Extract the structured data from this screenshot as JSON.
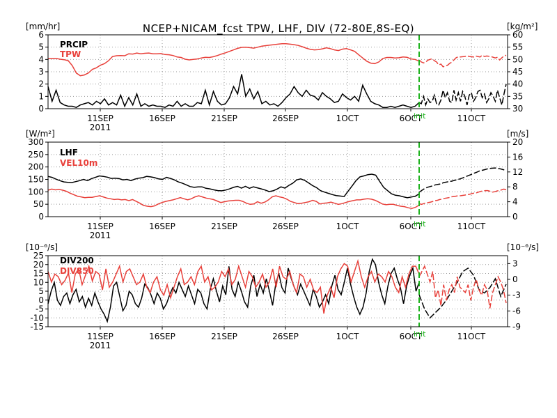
{
  "title": "NCEP+NICAM_fcst TPW, LHF, DIV (72-80E,8S-EQ)",
  "init_label": "init",
  "colors": {
    "black": "#000000",
    "red": "#e8403a",
    "init": "#1db21d"
  },
  "x_ticks": [
    {
      "label": "11SEP",
      "sub": "2011"
    },
    {
      "label": "16SEP",
      "sub": ""
    },
    {
      "label": "21SEP",
      "sub": ""
    },
    {
      "label": "26SEP",
      "sub": ""
    },
    {
      "label": "1OCT",
      "sub": ""
    },
    {
      "label": "6OCT",
      "sub": ""
    },
    {
      "label": "11OCT",
      "sub": ""
    }
  ],
  "chart_data": [
    {
      "type": "line",
      "left_unit": "[mm/hr]",
      "right_unit": "[kg/m²]",
      "left_ticks": [
        "6",
        "5",
        "4",
        "3",
        "2",
        "1",
        "0"
      ],
      "right_ticks": [
        "60",
        "55",
        "50",
        "45",
        "40",
        "35",
        "30"
      ],
      "ylim_left": [
        0,
        6
      ],
      "ylim_right": [
        30,
        60
      ],
      "series": [
        {
          "name": "PRCIP",
          "axis": "left",
          "color": "#000000",
          "obs": [
            1.8,
            0.6,
            1.5,
            0.5,
            0.3,
            0.2,
            0.2,
            0.1,
            0.3,
            0.4,
            0.5,
            0.3,
            0.6,
            0.4,
            0.8,
            0.3,
            0.5,
            0.3,
            1.1,
            0.2,
            0.9,
            0.3,
            1.2,
            0.2,
            0.4,
            0.2,
            0.3,
            0.2,
            0.2,
            0.1,
            0.3,
            0.2,
            0.6,
            0.2,
            0.4,
            0.2,
            0.2,
            0.5,
            0.4,
            1.5,
            0.3,
            1.4,
            0.6,
            0.3,
            0.4,
            0.9,
            1.8,
            1.2,
            2.8,
            1.0,
            1.6,
            0.8,
            1.4,
            0.4,
            0.6,
            0.3,
            0.4,
            0.2,
            0.5,
            0.9,
            1.2,
            1.8,
            1.3,
            1.0,
            1.5,
            1.1,
            1.0,
            0.7,
            1.3,
            1.0,
            0.8,
            0.5,
            0.6,
            1.2,
            0.9,
            0.7,
            1.0,
            0.6,
            1.9,
            1.2,
            0.6,
            0.4,
            0.3,
            0.1,
            0.1,
            0.2,
            0.1,
            0.2,
            0.3,
            0.2,
            0.1,
            0.2,
            0.5
          ],
          "fcst": [
            0.5,
            0.4,
            1.0,
            0.3,
            0.8,
            0.5,
            0.6,
            1.1,
            0.4,
            0.3,
            0.7,
            1.5,
            0.9,
            1.3,
            0.6,
            0.5,
            1.5,
            0.7,
            1.3,
            0.6,
            1.4,
            1.0,
            0.3,
            1.1,
            1.3,
            0.6,
            0.9,
            1.4,
            1.5,
            0.9,
            1.2,
            0.5,
            0.8,
            1.3,
            1.0,
            0.6,
            1.5,
            0.9,
            0.3,
            1.2,
            2.0
          ]
        },
        {
          "name": "TPW",
          "axis": "right",
          "color": "#e8403a",
          "obs": [
            50.3,
            50.4,
            50.4,
            50.1,
            49.9,
            49.5,
            47.5,
            44.5,
            43.4,
            43.7,
            44.5,
            46.0,
            46.6,
            47.7,
            48.3,
            49.5,
            51.2,
            51.5,
            51.6,
            51.5,
            52.3,
            52.2,
            52.6,
            52.3,
            52.5,
            52.6,
            52.3,
            52.3,
            52.4,
            52.0,
            51.9,
            51.6,
            51.0,
            50.8,
            50.1,
            49.8,
            50.0,
            50.2,
            50.6,
            50.9,
            50.8,
            51.1,
            51.6,
            52.2,
            52.7,
            53.3,
            53.9,
            54.5,
            54.9,
            55.0,
            54.8,
            54.6,
            55.0,
            55.4,
            55.6,
            55.8,
            56.0,
            56.2,
            56.4,
            56.4,
            56.2,
            56.0,
            55.7,
            55.2,
            54.6,
            54.1,
            53.9,
            54.0,
            54.3,
            54.7,
            54.4,
            53.9,
            53.6,
            54.2,
            54.4,
            53.9,
            53.3,
            51.9,
            50.6,
            49.3,
            48.5,
            48.3,
            49.0,
            50.4,
            50.8,
            50.8,
            50.6,
            50.7,
            51.0,
            50.9,
            50.2,
            50.0,
            49.3
          ],
          "fcst": [
            49.8,
            49.0,
            48.6,
            48.9,
            49.7,
            50.0,
            50.3,
            49.5,
            49.0,
            47.8,
            48.1,
            47.0,
            47.3,
            47.6,
            48.4,
            48.9,
            49.8,
            50.7,
            51.1,
            51.0,
            51.1,
            51.2,
            51.5,
            51.2,
            51.1,
            51.0,
            51.4,
            51.2,
            51.0,
            51.7,
            51.2,
            51.4,
            51.3,
            51.2,
            50.9,
            50.6,
            50.9,
            49.8,
            50.7,
            51.4,
            51.7
          ]
        }
      ]
    },
    {
      "type": "line",
      "left_unit": "[W/m²]",
      "right_unit": "[m/s]",
      "left_ticks": [
        "300",
        "250",
        "200",
        "150",
        "100",
        "50",
        "0"
      ],
      "right_ticks": [
        "20",
        "16",
        "12",
        "8",
        "4",
        "0"
      ],
      "ylim_left": [
        0,
        300
      ],
      "ylim_right": [
        0,
        20
      ],
      "series": [
        {
          "name": "LHF",
          "axis": "left",
          "color": "#000000",
          "obs": [
            162,
            158,
            151,
            145,
            140,
            138,
            137,
            141,
            145,
            150,
            145,
            153,
            158,
            164,
            162,
            159,
            154,
            155,
            153,
            148,
            150,
            145,
            151,
            155,
            157,
            162,
            160,
            157,
            152,
            150,
            158,
            154,
            148,
            140,
            135,
            128,
            121,
            118,
            120,
            120,
            114,
            112,
            108,
            105,
            104,
            107,
            112,
            118,
            122,
            115,
            122,
            114,
            120,
            116,
            112,
            107,
            101,
            104,
            111,
            120,
            115,
            126,
            135,
            148,
            152,
            146,
            136,
            125,
            117,
            105,
            99,
            94,
            89,
            85,
            83,
            81,
            102,
            123,
            145,
            160,
            164,
            169,
            171,
            167,
            142,
            118,
            105,
            92,
            86,
            84,
            80,
            76,
            79,
            82,
            92
          ],
          "fcst": [
            98,
            106,
            113,
            118,
            121,
            124,
            128,
            130,
            132,
            137,
            139,
            141,
            143,
            146,
            149,
            152,
            156,
            160,
            165,
            169,
            174,
            178,
            183,
            186,
            189,
            192,
            194,
            195,
            196,
            194,
            192,
            189,
            186
          ]
        },
        {
          "name": "VEL10m",
          "axis": "right",
          "color": "#e8403a",
          "obs": [
            7.1,
            7.4,
            7.2,
            7.3,
            7.1,
            6.8,
            6.3,
            5.9,
            5.5,
            5.3,
            5.1,
            5.2,
            5.2,
            5.4,
            5.6,
            5.3,
            5.0,
            4.8,
            4.6,
            4.7,
            4.5,
            4.6,
            4.3,
            4.6,
            4.1,
            3.6,
            3.0,
            2.8,
            2.7,
            2.9,
            3.4,
            3.8,
            4.1,
            4.3,
            4.5,
            4.8,
            5.1,
            4.8,
            4.5,
            4.8,
            5.3,
            5.6,
            5.3,
            5.0,
            4.8,
            4.6,
            4.2,
            3.8,
            4.0,
            4.2,
            4.3,
            4.4,
            4.4,
            4.1,
            3.6,
            3.3,
            3.4,
            4.0,
            3.6,
            3.9,
            4.5,
            5.3,
            5.6,
            5.3,
            5.1,
            4.7,
            4.1,
            3.8,
            3.5,
            3.6,
            3.8,
            4.0,
            4.4,
            4.1,
            3.4,
            3.6,
            3.7,
            3.9,
            3.6,
            3.3,
            3.5,
            3.8,
            4.1,
            4.3,
            4.5,
            4.5,
            4.7,
            4.8,
            4.7,
            4.4,
            3.9,
            3.4,
            3.2,
            3.3,
            3.3,
            3.0,
            2.8,
            2.7,
            2.4,
            2.2,
            2.5,
            3.1
          ],
          "fcst": [
            3.5,
            3.3,
            3.5,
            3.7,
            3.8,
            3.9,
            4.1,
            4.3,
            4.4,
            4.6,
            4.7,
            4.9,
            5.0,
            5.1,
            5.3,
            5.4,
            5.5,
            5.6,
            5.6,
            5.7,
            5.8,
            5.9,
            6.0,
            6.2,
            6.3,
            6.4,
            6.6,
            6.8,
            6.9,
            7.0,
            7.0,
            6.8,
            6.6,
            6.7,
            6.9,
            7.0,
            7.2,
            7.4,
            7.2
          ]
        }
      ]
    },
    {
      "type": "line",
      "left_unit": "[10⁻⁶/s]",
      "right_unit": "[10⁻⁶/s]",
      "left_ticks": [
        "25",
        "20",
        "15",
        "10",
        "5",
        "0",
        "-5",
        "-10",
        "-15"
      ],
      "right_ticks": [
        "3",
        "0",
        "-3",
        "-6",
        "-9"
      ],
      "ylim_left": [
        -15,
        25
      ],
      "ylim_right": [
        -9,
        4.5
      ],
      "series": [
        {
          "name": "DIV200",
          "axis": "left",
          "color": "#000000",
          "obs": [
            -2,
            5,
            10,
            0,
            -3,
            2,
            4,
            -2,
            3,
            6,
            -1,
            2,
            -4,
            1,
            -3,
            4,
            -1,
            -5,
            -8,
            -12,
            -4,
            8,
            10,
            2,
            -6,
            -3,
            5,
            3,
            -2,
            -4,
            1,
            9,
            7,
            3,
            -2,
            4,
            1,
            -5,
            -2,
            3,
            7,
            4,
            10,
            6,
            2,
            8,
            3,
            -2,
            6,
            4,
            -2,
            -5,
            6,
            12,
            5,
            -1,
            8,
            3,
            19,
            6,
            2,
            10,
            5,
            -1,
            -4,
            8,
            14,
            2,
            9,
            4,
            12,
            5,
            -3,
            9,
            15,
            7,
            4,
            18,
            12,
            7,
            3,
            9,
            5,
            1,
            -3,
            6,
            2,
            -4,
            -1,
            3,
            -2,
            8,
            14,
            6,
            3,
            10,
            18,
            9,
            2,
            -4,
            -8,
            -4,
            4,
            16,
            23,
            20,
            10,
            3,
            -2,
            8,
            15,
            18,
            12,
            7,
            -2,
            8,
            14,
            18,
            5,
            10
          ],
          "fcst": [
            3,
            -5,
            -10,
            -7,
            -4,
            0,
            5,
            10,
            16,
            18,
            14,
            6,
            4,
            7,
            12,
            2,
            9
          ]
        },
        {
          "name": "DIV850",
          "axis": "right",
          "color": "#e8403a",
          "obs": [
            1.5,
            -0.5,
            1.0,
            0.5,
            -1.0,
            -0.2,
            1.2,
            -2.5,
            1.0,
            2.0,
            -1.0,
            0.8,
            2.5,
            -0.3,
            1.5,
            1.0,
            -2.0,
            2.0,
            -1.5,
            -0.5,
            1.0,
            2.5,
            -0.5,
            1.5,
            2.0,
            0.5,
            -1.0,
            -0.5,
            1.0,
            -1.5,
            -2.5,
            -0.5,
            0.5,
            -2.0,
            -3.0,
            -1.0,
            -3.5,
            -1.5,
            0.5,
            2.0,
            -1.0,
            -0.5,
            0.5,
            -1.0,
            1.5,
            2.5,
            -0.5,
            0.5,
            -2.0,
            -1.5,
            -0.5,
            1.5,
            0.5,
            2.0,
            -1.0,
            0.0,
            2.5,
            0.5,
            -1.5,
            1.5,
            0.5,
            -1.5,
            -0.5,
            1.0,
            -1.5,
            -0.5,
            2.0,
            -1.5,
            2.5,
            0.5,
            0.0,
            1.5,
            -1.0,
            -2.5,
            1.0,
            0.5,
            -1.5,
            0.0,
            -2.0,
            -2.5,
            -1.5,
            -6.5,
            -3.0,
            -1.5,
            -3.5,
            0.5,
            2.0,
            3.0,
            2.5,
            -0.5,
            1.5,
            3.5,
            0.5,
            -1.5,
            0.5,
            1.5,
            -0.5,
            1.0,
            0.5,
            -0.5,
            1.5,
            0.5,
            -1.5,
            -2.5,
            0.5,
            -1.5,
            1.0,
            2.5,
            2.5,
            1.0
          ],
          "fcst": [
            0.5,
            1.5,
            2.5,
            1.0,
            -0.5,
            1.5,
            -3.5,
            -2.0,
            -5.0,
            -1.0,
            -4.0,
            -2.0,
            -1.0,
            -2.5,
            0.5,
            -1.5,
            -2.0,
            -2.5,
            -1.0,
            -4.0,
            -1.5,
            0.0,
            -2.0,
            -3.0,
            -1.0,
            -2.0,
            -5.5,
            -2.5,
            -1.0,
            0.5,
            -0.5,
            -2.0,
            -4.5
          ]
        }
      ]
    }
  ]
}
